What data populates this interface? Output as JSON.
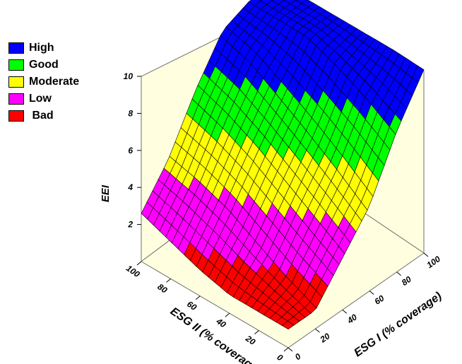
{
  "chart_data": {
    "type": "surface",
    "title": "",
    "xlabel": "ESG I (% coverage)",
    "ylabel": "ESG II (% coverage)",
    "zlabel": "EEI",
    "xlim": [
      0,
      100
    ],
    "ylim": [
      0,
      100
    ],
    "zlim": [
      0,
      10
    ],
    "x_ticks": [
      "0",
      "20",
      "40",
      "60",
      "80",
      "100"
    ],
    "y_ticks": [
      "0",
      "20",
      "40",
      "60",
      "80",
      "100"
    ],
    "z_ticks": [
      "2",
      "4",
      "6",
      "8",
      "10"
    ],
    "grid": false,
    "legend_position": "top-left",
    "legend": [
      {
        "label": "High",
        "color": "#0000ff"
      },
      {
        "label": "Good",
        "color": "#00ff00"
      },
      {
        "label": "Moderate",
        "color": "#ffff00"
      },
      {
        "label": "Low",
        "color": "#ff00ff"
      },
      {
        "label": " Bad",
        "color": "#ff0000"
      }
    ],
    "surface": {
      "x": [
        0,
        20,
        40,
        60,
        80,
        100
      ],
      "y": [
        0,
        20,
        40,
        60,
        80,
        100
      ],
      "z": [
        [
          1.0,
          1.0,
          2.8,
          4.6,
          7.6,
          9.9
        ],
        [
          1.0,
          1.7,
          3.8,
          5.8,
          8.6,
          10.0
        ],
        [
          1.0,
          2.6,
          4.8,
          6.9,
          9.4,
          10.0
        ],
        [
          1.4,
          3.5,
          5.8,
          7.9,
          10.0,
          10.0
        ],
        [
          2.0,
          4.1,
          6.6,
          8.9,
          10.0,
          10.0
        ],
        [
          2.6,
          4.5,
          7.2,
          9.4,
          10.0,
          10.0
        ]
      ]
    },
    "class_thresholds": [
      {
        "label": "High",
        "min": 8
      },
      {
        "label": "Good",
        "min": 6
      },
      {
        "label": "Moderate",
        "min": 4
      },
      {
        "label": "Low",
        "min": 2
      },
      {
        "label": " Bad",
        "min": 0
      }
    ]
  }
}
